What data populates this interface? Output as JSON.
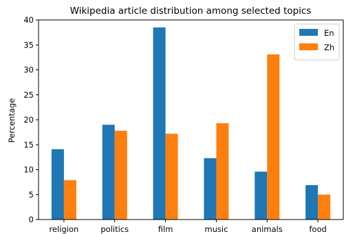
{
  "chart_data": {
    "type": "bar",
    "title": "Wikipedia article distribution among selected topics",
    "xlabel": "",
    "ylabel": "Percentage",
    "categories": [
      "religion",
      "politics",
      "film",
      "music",
      "animals",
      "food"
    ],
    "series": [
      {
        "name": "En",
        "values": [
          14.1,
          19.0,
          38.5,
          12.3,
          9.6,
          6.9
        ],
        "color": "#1f77b4"
      },
      {
        "name": "Zh",
        "values": [
          7.9,
          17.8,
          17.2,
          19.3,
          33.1,
          5.0
        ],
        "color": "#ff7f0e"
      }
    ],
    "ylim": [
      0,
      40
    ],
    "yticks": [
      0,
      5,
      10,
      15,
      20,
      25,
      30,
      35,
      40
    ],
    "grid": false,
    "legend_position": "top-right"
  }
}
